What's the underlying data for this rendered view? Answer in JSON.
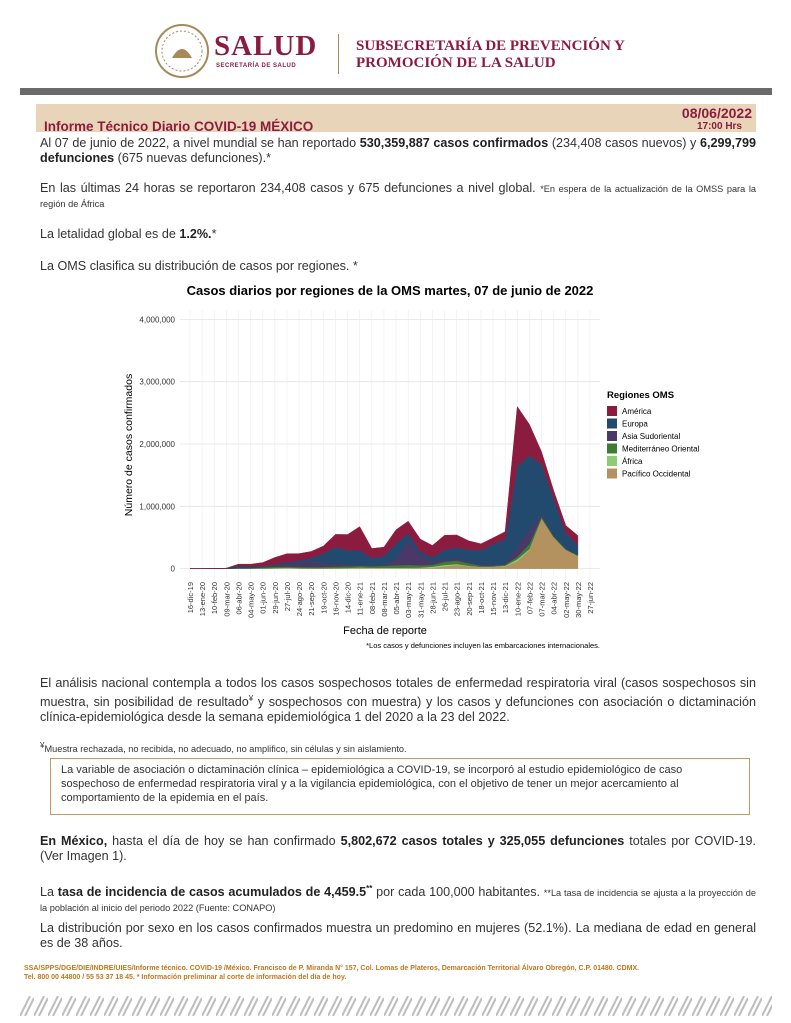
{
  "header": {
    "logo_title": "SALUD",
    "logo_subtitle": "SECRETARÍA DE SALUD",
    "agency_line1": "SUBSECRETARÍA DE PREVENCIÓN Y",
    "agency_line2": "PROMOCIÓN DE LA SALUD"
  },
  "report": {
    "title": "Informe Técnico Diario COVID-19 MÉXICO",
    "date": "08/06/2022",
    "time": "17:00 Hrs"
  },
  "paragraphs": [
    [
      "Al 07 de junio de 2022, a nivel mundial se han reportado ",
      "530,359,887 casos confirmados",
      " (234,408 casos nuevos) y ",
      "6,299,799 defunciones",
      " (675 nuevas defunciones).*"
    ],
    [
      "En las últimas 24 horas se reportaron 234,408 casos y 675 defunciones a nivel global. ",
      "*En espera de la actualización de la OMSS para la región de África"
    ],
    [
      "La letalidad global es de ",
      "1.2%.",
      "*"
    ],
    [
      "La OMS clasifica su distribución de casos por regiones. *"
    ]
  ],
  "chart_data": {
    "type": "area",
    "stacked": true,
    "title": "Casos diarios por regiones de la OMS martes, 07 de junio de 2022",
    "x_label": "Fecha de reporte",
    "y_label": "Número de casos confirmados",
    "note": "*Los casos y defunciones incluyen las embarcaciones internacionales.",
    "legend_title": "Regiones OMS",
    "legend": "right",
    "grid": true,
    "categories": [
      "16-dic-19",
      "13-ene-20",
      "10-feb-20",
      "09-mar-20",
      "06-abr-20",
      "04-may-20",
      "01-jun-20",
      "29-jun-20",
      "27-jul-20",
      "24-ago-20",
      "21-sep-20",
      "19-oct-20",
      "16-nov-20",
      "14-dic-20",
      "11-ene-21",
      "08-feb-21",
      "08-mar-21",
      "05-abr-21",
      "03-may-21",
      "31-may-21",
      "28-jun-21",
      "26-jul-21",
      "23-ago-21",
      "20-sep-21",
      "18-oct-21",
      "15-nov-21",
      "13-dic-21",
      "10-ene-22",
      "07-feb-22",
      "07-mar-22",
      "04-abr-22",
      "02-may-22",
      "30-may-22",
      "27-jun-22"
    ],
    "ylim": [
      -150000,
      4150000
    ],
    "yticks": [
      0,
      {
        "value": 1000000,
        "label": "1,000,000"
      },
      {
        "value": 2000000,
        "label": "2,000,000"
      },
      {
        "value": 3000000,
        "label": "3,000,000"
      },
      {
        "value": 4000000,
        "label": "4,000,000"
      }
    ],
    "series": [
      {
        "name": "América",
        "color": "#8c1c3f",
        "values": [
          0,
          0,
          0,
          1000,
          30000,
          35000,
          55000,
          110000,
          130000,
          110000,
          100000,
          120000,
          200000,
          250000,
          380000,
          150000,
          140000,
          220000,
          190000,
          200000,
          190000,
          230000,
          200000,
          140000,
          100000,
          100000,
          120000,
          950000,
          500000,
          200000,
          120000,
          120000,
          150000,
          null
        ]
      },
      {
        "name": "Europa",
        "color": "#22496e",
        "values": [
          0,
          0,
          0,
          5000,
          35000,
          25000,
          15000,
          18000,
          20000,
          30000,
          55000,
          150000,
          270000,
          230000,
          230000,
          120000,
          140000,
          250000,
          130000,
          60000,
          70000,
          150000,
          170000,
          190000,
          230000,
          330000,
          400000,
          1300000,
          1200000,
          800000,
          600000,
          250000,
          150000,
          null
        ]
      },
      {
        "name": "Asia Sudoriental",
        "color": "#4a3868",
        "values": [
          0,
          0,
          0,
          0,
          1000,
          3000,
          8000,
          20000,
          55000,
          75000,
          95000,
          65000,
          45000,
          30000,
          20000,
          14000,
          20000,
          100000,
          380000,
          160000,
          50000,
          45000,
          40000,
          30000,
          20000,
          15000,
          10000,
          160000,
          220000,
          40000,
          15000,
          10000,
          15000,
          null
        ]
      },
      {
        "name": "Mediterráneo Oriental",
        "color": "#3b7d35",
        "values": [
          0,
          0,
          0,
          1000,
          4000,
          6000,
          15000,
          20000,
          18000,
          17000,
          19000,
          20000,
          25000,
          25000,
          25000,
          25000,
          30000,
          40000,
          45000,
          35000,
          30000,
          50000,
          55000,
          40000,
          20000,
          15000,
          15000,
          40000,
          80000,
          30000,
          15000,
          10000,
          10000,
          null
        ]
      },
      {
        "name": "África",
        "color": "#8fcb72",
        "values": [
          0,
          0,
          0,
          0,
          500,
          1000,
          3000,
          9000,
          12000,
          5000,
          4000,
          4000,
          5000,
          6000,
          9000,
          7000,
          8000,
          7000,
          6000,
          6000,
          20000,
          20000,
          15000,
          6000,
          3000,
          3000,
          8000,
          30000,
          15000,
          5000,
          3000,
          3000,
          5000,
          null
        ]
      },
      {
        "name": "Pacífico Occidental",
        "color": "#b3925f",
        "values": [
          0,
          100,
          2000,
          1000,
          2000,
          1000,
          1500,
          2000,
          4000,
          4000,
          3000,
          3000,
          4000,
          6000,
          10000,
          7000,
          7000,
          8000,
          10000,
          12000,
          12000,
          40000,
          60000,
          40000,
          25000,
          30000,
          40000,
          120000,
          300000,
          800000,
          500000,
          300000,
          200000,
          null
        ]
      }
    ]
  },
  "national": {
    "p1": [
      "El análisis nacional contempla a todos los casos sospechosos totales de enfermedad respiratoria viral (casos sospechosos sin muestra, sin posibilidad de resultado",
      "¥",
      " y sospechosos con muestra) y los casos y defunciones con asociación o dictaminación clínica-epidemiológica desde la semana epidemiológica 1 del 2020 a la 23 del 2022."
    ],
    "footnote": [
      "¥",
      "Muestra rechazada, no recibida, no adecuado, no amplifico, sin células y sin aislamiento."
    ],
    "box": "La variable de asociación o dictaminación clínica – epidemiológica a COVID-19, se incorporó al estudio epidemiológico de caso sospechoso de enfermedad respiratoria viral y a la vigilancia epidemiológica, con el objetivo de tener un mejor acercamiento al comportamiento de la epidemia en el país.",
    "p2": [
      "En México,",
      " hasta el día de hoy se han confirmado ",
      "5,802,672 casos totales y 325,055 defunciones",
      " totales por COVID-19. (Ver Imagen 1)."
    ],
    "p3": [
      "La ",
      "tasa de incidencia de casos acumulados de 4,459.5",
      "**",
      " por cada 100,000 habitantes. ",
      "**La tasa de incidencia se ajusta a la proyección de la población al inicio del periodo 2022 (Fuente: CONAPO)"
    ],
    "p4": "La distribución por sexo en los casos confirmados muestra un predomino en mujeres (52.1%). La mediana de edad en general es de 38 años."
  },
  "footer": {
    "line1": "SSA/SPPS/DGE/DIE/INDRE/UIES/Informe técnico. COVID-19 /México. Francisco de P. Miranda N° 157, Col. Lomas de Plateros, Demarcación Territorial Álvaro Obregón, C.P. 01480. CDMX.",
    "line2": "Tel. 800 00 44800 / 55 53 37 18 45. * Información preliminar al corte de información del día de hoy."
  }
}
